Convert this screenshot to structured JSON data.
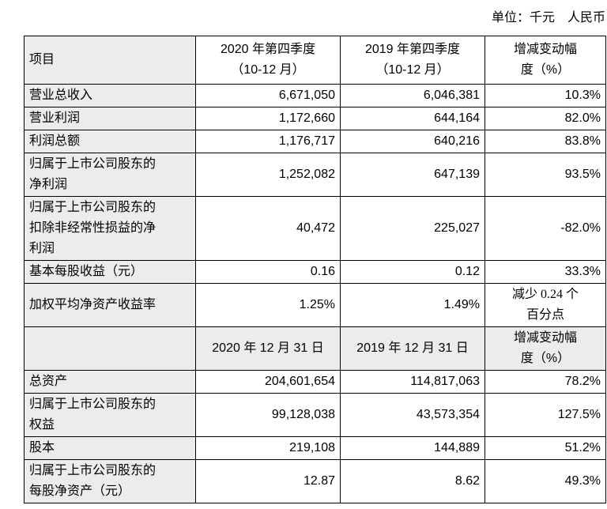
{
  "page": {
    "unit_note": "单位：千元　人民币"
  },
  "table": {
    "sections": [
      {
        "header": [
          "项目",
          "2020 年第四季度\n（10-12 月）",
          "2019 年第四季度\n（10-12 月）",
          "增减变动幅\n度（%）"
        ],
        "rows": [
          [
            "营业总收入",
            "6,671,050",
            "6,046,381",
            "10.3%"
          ],
          [
            "营业利润",
            "1,172,660",
            "644,164",
            "82.0%"
          ],
          [
            "利润总额",
            "1,176,717",
            "640,216",
            "83.8%"
          ],
          [
            "归属于上市公司股东的\n净利润",
            "1,252,082",
            "647,139",
            "93.5%"
          ],
          [
            "归属于上市公司股东的\n扣除非经常性损益的净\n利润",
            "40,472",
            "225,027",
            "-82.0%"
          ],
          [
            "基本每股收益（元）",
            "0.16",
            "0.12",
            "33.3%"
          ],
          [
            "加权平均净资产收益率",
            "1.25%",
            "1.49%",
            "减少 0.24 个\n百分点"
          ]
        ]
      },
      {
        "header": [
          "",
          "2020 年 12 月 31 日",
          "2019 年 12 月 31 日",
          "增减变动幅\n度（%）"
        ],
        "rows": [
          [
            "总资产",
            "204,601,654",
            "114,817,063",
            "78.2%"
          ],
          [
            "归属于上市公司股东的\n权益",
            "99,128,038",
            "43,573,354",
            "127.5%"
          ],
          [
            "股本",
            "219,108",
            "144,889",
            "51.2%"
          ],
          [
            "归属于上市公司股东的\n每股净资产（元）",
            "12.87",
            "8.62",
            "49.3%"
          ]
        ]
      }
    ]
  }
}
